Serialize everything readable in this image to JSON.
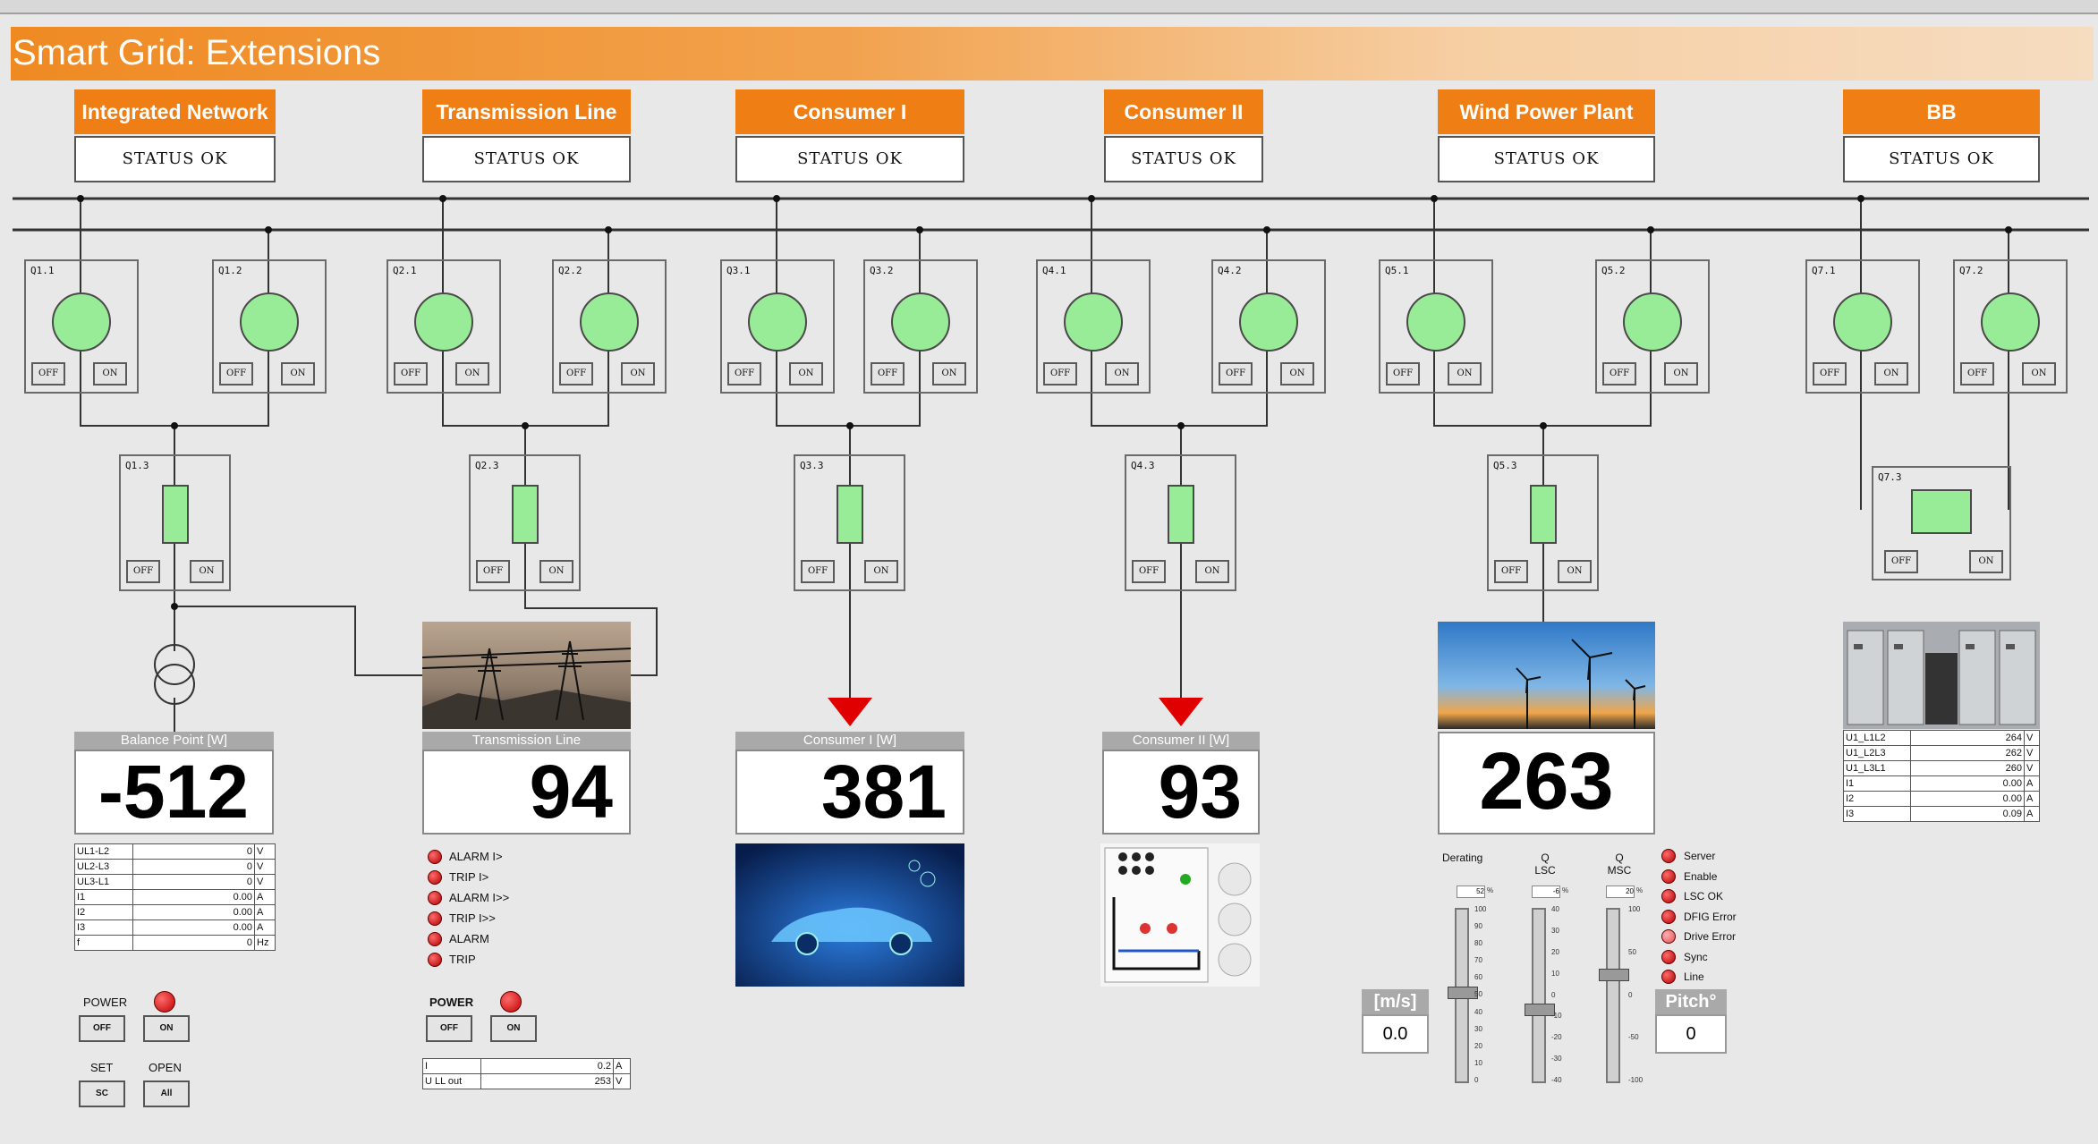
{
  "window": {
    "title": "Smart Grid: Extensions"
  },
  "sections": [
    {
      "label": "Integrated Network",
      "status": "STATUS OK"
    },
    {
      "label": "Transmission Line",
      "status": "STATUS OK"
    },
    {
      "label": "Consumer I",
      "status": "STATUS OK"
    },
    {
      "label": "Consumer II",
      "status": "STATUS OK"
    },
    {
      "label": "Wind Power Plant",
      "status": "STATUS OK"
    },
    {
      "label": "BB",
      "status": "STATUS OK"
    }
  ],
  "breakers": {
    "q1_1": "Q1.1",
    "q1_2": "Q1.2",
    "q1_3": "Q1.3",
    "q2_1": "Q2.1",
    "q2_2": "Q2.2",
    "q2_3": "Q2.3",
    "q3_1": "Q3.1",
    "q3_2": "Q3.2",
    "q3_3": "Q3.3",
    "q4_1": "Q4.1",
    "q4_2": "Q4.2",
    "q4_3": "Q4.3",
    "q5_1": "Q5.1",
    "q5_2": "Q5.2",
    "q5_3": "Q5.3",
    "q7_1": "Q7.1",
    "q7_2": "Q7.2",
    "q7_3": "Q7.3",
    "off_label": "OFF",
    "on_label": "ON"
  },
  "balance": {
    "header": "Balance Point [W]",
    "value": "-512",
    "rows": [
      [
        "UL1-L2",
        "0",
        "V"
      ],
      [
        "UL2-L3",
        "0",
        "V"
      ],
      [
        "UL3-L1",
        "0",
        "V"
      ],
      [
        "I1",
        "0.00",
        "A"
      ],
      [
        "I2",
        "0.00",
        "A"
      ],
      [
        "I3",
        "0.00",
        "A"
      ],
      [
        "f",
        "0",
        "Hz"
      ]
    ]
  },
  "transmission": {
    "header": "Transmission Line",
    "value": "94",
    "alarms": [
      "ALARM I>",
      "TRIP I>",
      "ALARM I>>",
      "TRIP I>>",
      "ALARM",
      "TRIP"
    ],
    "rows": [
      [
        "I",
        "0.2",
        "A"
      ],
      [
        "U LL out",
        "253",
        "V"
      ]
    ]
  },
  "consumer1": {
    "header": "Consumer I [W]",
    "value": "381"
  },
  "consumer2": {
    "header": "Consumer II [W]",
    "value": "93"
  },
  "wind": {
    "value": "263",
    "speed_label": "[m/s]",
    "speed_value": "0.0",
    "pitch_label": "Pitch°",
    "pitch_value": "0",
    "derating_label": "Derating",
    "derating_value": "52",
    "q_lsc_label": "Q LSC",
    "q_lsc_value": "-6",
    "q_msc_label": "Q MSC",
    "q_msc_value": "20",
    "pct": "%",
    "statuses": [
      "Server",
      "Enable",
      "LSC OK",
      "DFIG Error",
      "Drive Error",
      "Sync",
      "Line"
    ],
    "derating_ticks": [
      "100",
      "90",
      "80",
      "70",
      "60",
      "50",
      "40",
      "30",
      "20",
      "10",
      "0"
    ],
    "lsc_ticks": [
      "40",
      "30",
      "20",
      "10",
      "0",
      "-10",
      "-20",
      "-30",
      "-40"
    ],
    "msc_ticks": [
      "100",
      "50",
      "0",
      "-50",
      "-100"
    ]
  },
  "bb": {
    "rows": [
      [
        "U1_L1L2",
        "264",
        "V"
      ],
      [
        "U1_L2L3",
        "262",
        "V"
      ],
      [
        "U1_L3L1",
        "260",
        "V"
      ],
      [
        "I1",
        "0.00",
        "A"
      ],
      [
        "I2",
        "0.00",
        "A"
      ],
      [
        "I3",
        "0.09",
        "A"
      ]
    ]
  },
  "controls_left": {
    "power_label": "POWER",
    "set_label": "SET",
    "open_label": "OPEN",
    "off_btn": "OFF",
    "on_btn": "ON",
    "set_btn": "SC",
    "open_btn": "All"
  },
  "controls_mid": {
    "power_label": "POWER",
    "off_btn": "OFF",
    "on_btn": "ON"
  },
  "colors": {
    "accent": "#ef7e14",
    "breaker_green": "#98ec98",
    "led_red": "#d00000",
    "arrow_red": "#e00000"
  }
}
